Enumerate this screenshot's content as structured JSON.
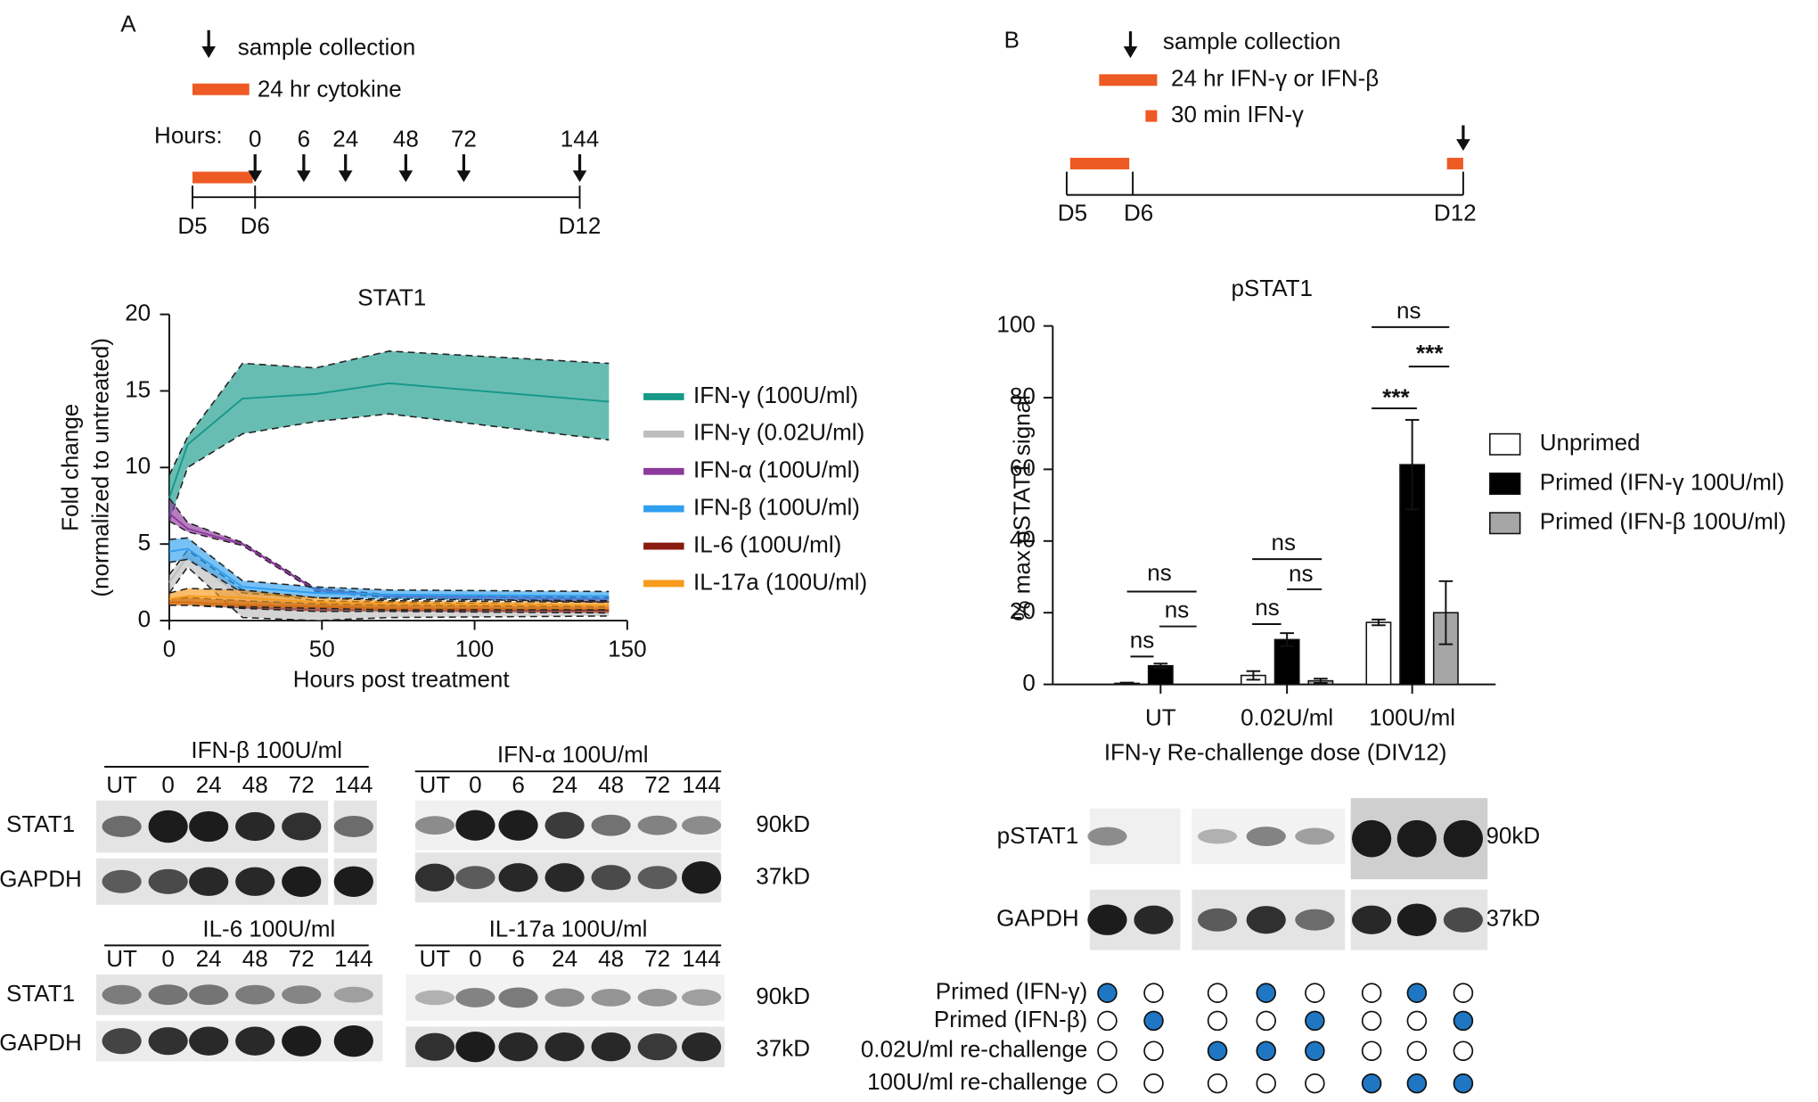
{
  "panel_a": {
    "label": "A",
    "timeline": {
      "legend": [
        "sample collection",
        "24 hr cytokine"
      ],
      "hours_label": "Hours:",
      "hours": [
        0,
        6,
        24,
        48,
        72,
        144
      ],
      "days": [
        "D5",
        "D6",
        "D12"
      ]
    },
    "blots": [
      {
        "title": "IFN-β 100U/ml",
        "lanes": [
          "UT",
          0,
          24,
          48,
          72,
          144
        ],
        "rows": [
          "STAT1",
          "GAPDH"
        ]
      },
      {
        "title": "IFN-α 100U/ml",
        "lanes": [
          "UT",
          0,
          6,
          24,
          48,
          72,
          144
        ],
        "sizes": [
          "90kD",
          "37kD"
        ]
      },
      {
        "title": "IL-6 100U/ml",
        "lanes": [
          "UT",
          0,
          24,
          48,
          72,
          144
        ],
        "rows": [
          "STAT1",
          "GAPDH"
        ]
      },
      {
        "title": "IL-17a 100U/ml",
        "lanes": [
          "UT",
          0,
          6,
          24,
          48,
          72,
          144
        ],
        "sizes": [
          "90kD",
          "37kD"
        ]
      }
    ]
  },
  "panel_b": {
    "label": "B",
    "timeline": {
      "legend": [
        "sample collection",
        "24 hr IFN-γ or IFN-β",
        "30 min IFN-γ"
      ],
      "days": [
        "D5",
        "D6",
        "D12"
      ]
    },
    "blot": {
      "rows": [
        "pSTAT1",
        "GAPDH"
      ],
      "sizes": [
        "90kD",
        "37kD"
      ]
    },
    "conditions": {
      "labels": [
        "Primed (IFN-γ)",
        "Primed (IFN-β)",
        "0.02U/ml re-challenge",
        "100U/ml re-challenge"
      ],
      "matrix": [
        [
          true,
          false,
          false,
          true,
          false,
          false,
          true,
          false
        ],
        [
          false,
          true,
          false,
          false,
          true,
          false,
          false,
          true
        ],
        [
          false,
          false,
          true,
          true,
          true,
          false,
          false,
          false
        ],
        [
          false,
          false,
          false,
          false,
          false,
          true,
          true,
          true
        ]
      ]
    }
  },
  "chart_data": [
    {
      "type": "line",
      "title": "STAT1",
      "x_label": "Hours post treatment",
      "y_label": [
        "Fold change",
        "(normalized to untreated)"
      ],
      "x": [
        0,
        6,
        24,
        48,
        72,
        144
      ],
      "xlim": [
        0,
        150
      ],
      "xticks": [
        0,
        50,
        100,
        150
      ],
      "ylim": [
        0,
        20
      ],
      "yticks": [
        0,
        5,
        10,
        15,
        20
      ],
      "series": [
        {
          "name": "IFN-γ (100U/ml)",
          "color": "#17998a",
          "values": [
            8,
            11.5,
            14.5,
            14.8,
            15.5,
            14.3
          ],
          "upper": [
            9.5,
            12,
            16.8,
            16.5,
            17.6,
            16.8
          ],
          "lower": [
            6.5,
            10,
            12.2,
            13,
            13.5,
            11.8
          ]
        },
        {
          "name": "IFN-γ (0.02U/ml)",
          "color": "#bdbdbd",
          "values": [
            2.5,
            4.2,
            1.5,
            1,
            1,
            0.8
          ],
          "upper": [
            3,
            4.6,
            2,
            1.3,
            1.2,
            1
          ],
          "lower": [
            1.8,
            3.5,
            0.2,
            0,
            0.2,
            0.3
          ]
        },
        {
          "name": "IFN-α (100U/ml)",
          "color": "#8e3a9d",
          "values": [
            7,
            6,
            5,
            2,
            1.6,
            1.4
          ],
          "upper": [
            8,
            6.4,
            5.1,
            2.1,
            1.7,
            1.5
          ],
          "lower": [
            6.5,
            5.8,
            4.9,
            1.9,
            1.5,
            1.2
          ]
        },
        {
          "name": "IFN-β (100U/ml)",
          "color": "#2f9ff0",
          "values": [
            4.5,
            4.7,
            2.2,
            1.8,
            1.7,
            1.6
          ],
          "upper": [
            5.3,
            5.4,
            2.6,
            2.2,
            2,
            1.9
          ],
          "lower": [
            3.8,
            4,
            1.8,
            1.5,
            1.4,
            1.3
          ]
        },
        {
          "name": "IL-6 (100U/ml)",
          "color": "#8b1a10",
          "values": [
            1.2,
            1.2,
            1,
            0.9,
            0.8,
            0.7
          ],
          "upper": [
            1.4,
            1.5,
            1.3,
            1.1,
            1,
            0.9
          ],
          "lower": [
            1,
            1,
            0.8,
            0.6,
            0.6,
            0.5
          ]
        },
        {
          "name": "IL-17a (100U/ml)",
          "color": "#f89a1c",
          "values": [
            1.4,
            1.6,
            1.5,
            1.2,
            1.1,
            1
          ],
          "upper": [
            1.8,
            2.1,
            2,
            1.5,
            1.3,
            1.2
          ],
          "lower": [
            1,
            1,
            0.9,
            0.8,
            0.7,
            0.7
          ]
        }
      ]
    },
    {
      "type": "bar",
      "title": "pSTAT1",
      "x_label": "IFN-γ Re-challenge dose (DIV12)",
      "y_label": "% max pSTAT1 signal",
      "categories": [
        "UT",
        "0.02U/ml",
        "100U/ml"
      ],
      "ylim": [
        0,
        100
      ],
      "yticks": [
        0,
        20,
        40,
        60,
        80,
        100
      ],
      "series": [
        {
          "name": "Unprimed",
          "color": "#ffffff",
          "values": [
            0.3,
            2.5,
            17.3
          ],
          "errors": [
            0.2,
            1.2,
            0.8
          ]
        },
        {
          "name": "Primed (IFN-γ 100U/ml)",
          "color": "#000000",
          "values": [
            5.2,
            12.5,
            61.3
          ],
          "errors": [
            0.6,
            1.8,
            12.5
          ]
        },
        {
          "name": "Primed (IFN-β 100U/ml)",
          "color": "#a6a6a6",
          "values": [
            null,
            1,
            20
          ],
          "errors": [
            null,
            0.6,
            8.8
          ]
        }
      ],
      "annotations": [
        "ns",
        "ns",
        "ns",
        "ns",
        "ns",
        "ns",
        "***",
        "***",
        "ns"
      ]
    }
  ]
}
